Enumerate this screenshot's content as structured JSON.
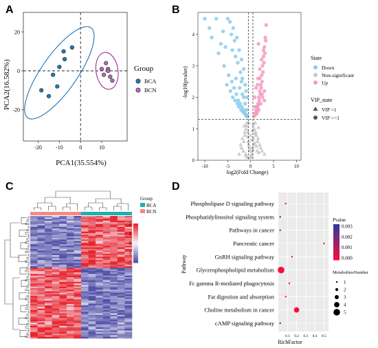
{
  "panel_labels": {
    "a": "A",
    "b": "B",
    "c": "C",
    "d": "D"
  },
  "chart_data": [
    {
      "type": "scatter",
      "panel": "A",
      "xlabel": "PCA1(35.554%)",
      "ylabel": "PCA2(16.582%)",
      "xlim": [
        -27,
        22
      ],
      "ylim": [
        -36,
        30
      ],
      "xticks": [
        -20,
        -10,
        0,
        10
      ],
      "yticks": [
        -20,
        0,
        20
      ],
      "legend_title": "Group",
      "legend_position": "right",
      "series": [
        {
          "name": "BCA",
          "color": "#1f7bb5",
          "ellipse_color": "#1f74b4",
          "x": [
            -18.5,
            -15,
            -11,
            -7.5,
            -8,
            -4,
            -13,
            -10
          ],
          "y": [
            -10,
            -13,
            -8,
            6,
            10,
            12,
            -2,
            2
          ]
        },
        {
          "name": "BCN",
          "color": "#b06cb8",
          "ellipse_color": "#9b2d9a",
          "x": [
            10,
            11,
            12,
            13,
            14,
            13,
            15
          ],
          "y": [
            1,
            -2,
            4,
            1,
            -3,
            0,
            -5
          ]
        }
      ]
    },
    {
      "type": "scatter",
      "panel": "B",
      "xlabel": "log2(Fold Change)",
      "ylabel": "-log10(pvalue)",
      "xlim": [
        -11.5,
        11
      ],
      "ylim": [
        0,
        4.7
      ],
      "xticks": [
        -10,
        -5,
        0,
        5,
        10
      ],
      "yticks": [
        0,
        1,
        2,
        3,
        4
      ],
      "threshold_lines": {
        "x": [
          -0.5,
          0.5
        ],
        "y": [
          1.3
        ]
      },
      "legend_groups": [
        {
          "title": "State",
          "entries": [
            {
              "label": "Down",
              "color": "#8ccbea"
            },
            {
              "label": "Non-significant",
              "color": "#c8c8c8"
            },
            {
              "label": "Up",
              "color": "#f49ac0"
            }
          ]
        },
        {
          "title": "VIP_state",
          "entries": [
            {
              "label": "VIP <1",
              "shape": "triangle"
            },
            {
              "label": "VIP >=1",
              "shape": "circle"
            }
          ]
        }
      ],
      "series": [
        {
          "name": "Down",
          "color": "#8ccbea",
          "x": [
            -10,
            -9,
            -8.5,
            -7.5,
            -6,
            -5.5,
            -5,
            -4.5,
            -4.2,
            -4,
            -3.8,
            -3.5,
            -3.3,
            -3,
            -2.8,
            -2.5,
            -2.2,
            -2,
            -1.8,
            -1.5,
            -1.2,
            -1,
            -0.8,
            -6.5,
            -5.8,
            -4.8,
            -4.1,
            -3.6,
            -3.1,
            -2.7,
            -2.3,
            -1.9,
            -1.6,
            -1.3,
            -1.1,
            -0.9,
            -7,
            -5.2,
            -4.4,
            -3.9,
            -3.4,
            -2.9,
            -2.6,
            -2.1,
            -1.7,
            -1.4,
            -1,
            -0.7,
            -3.2,
            -2.4,
            -1.8,
            -1.2,
            -0.9,
            -2,
            -1.5
          ],
          "y": [
            4.5,
            4.2,
            3.9,
            4.5,
            4.1,
            3.6,
            4.5,
            4.4,
            4,
            3.5,
            4.2,
            3.8,
            3.3,
            3.9,
            3.1,
            3.5,
            2.8,
            3.2,
            2.6,
            2.9,
            2.4,
            2.2,
            2,
            3.7,
            3,
            2.7,
            2.5,
            2.3,
            2.1,
            1.9,
            1.8,
            1.7,
            1.6,
            1.5,
            1.45,
            1.4,
            3.4,
            2.4,
            2.2,
            2,
            1.9,
            1.8,
            1.7,
            1.6,
            1.55,
            1.5,
            1.45,
            1.4,
            2.6,
            2.3,
            2.1,
            1.8,
            1.6,
            2.5,
            2
          ]
        },
        {
          "name": "Up",
          "color": "#f49ac0",
          "x": [
            0.8,
            1,
            1.2,
            1.4,
            1.6,
            1.8,
            2,
            2.2,
            2.4,
            2.6,
            2.8,
            3,
            3.2,
            3.4,
            1.1,
            1.3,
            1.5,
            1.7,
            1.9,
            2.1,
            2.3,
            2.5,
            2.7,
            2.9,
            3.1,
            0.9,
            1.2,
            1.6,
            2,
            2.4,
            2.8,
            3.3,
            1.4,
            1.8,
            2.2,
            2.6,
            3,
            1,
            1.5,
            2,
            2.5,
            3,
            1.7
          ],
          "y": [
            1.4,
            1.5,
            1.6,
            1.7,
            1.8,
            2,
            2.2,
            2.4,
            2.7,
            3,
            3.3,
            3.6,
            3.9,
            4.3,
            1.45,
            1.55,
            1.65,
            1.75,
            1.9,
            2.1,
            2.3,
            2.5,
            2.8,
            3.1,
            3.4,
            2,
            2.3,
            2.6,
            2.9,
            3.2,
            3.5,
            3.8,
            1.5,
            1.6,
            1.8,
            2,
            2.2,
            1.7,
            2.4,
            2.6,
            2.1,
            1.9,
            3.7
          ]
        },
        {
          "name": "Non-significant",
          "color": "#c8c8c8",
          "x": [
            -2.5,
            -2,
            -1.5,
            -1.2,
            -1,
            -0.8,
            -0.6,
            -0.4,
            -0.2,
            0,
            0.2,
            0.4,
            0.6,
            0.8,
            1,
            1.2,
            1.5,
            2,
            2.5,
            3,
            -1.8,
            -1.3,
            -0.9,
            -0.5,
            -0.1,
            0.3,
            0.7,
            1.1,
            1.6,
            2.2,
            -2.2,
            -1.6,
            -1.1,
            -0.7,
            -0.3,
            0.1,
            0.5,
            0.9,
            1.3,
            1.8,
            -1.4,
            -0.6,
            0.2,
            1,
            1.7,
            -1,
            0,
            0.6,
            1.4,
            -0.4,
            0.4
          ],
          "y": [
            0.2,
            0.4,
            0.6,
            0.8,
            1,
            1.2,
            0.9,
            0.5,
            0.3,
            0.1,
            0.2,
            0.4,
            0.7,
            1,
            1.2,
            0.8,
            0.6,
            0.5,
            0.3,
            0.2,
            0.7,
            0.9,
            1.1,
            0.6,
            0.4,
            0.3,
            0.5,
            0.9,
            0.7,
            0.4,
            0.5,
            0.3,
            0.2,
            0.1,
            0.05,
            0.15,
            0.35,
            0.55,
            0.45,
            0.25,
            1.1,
            0.75,
            0.65,
            0.85,
            1.05,
            0.15,
            0.8,
            1.15,
            0.3,
            1.2,
            0.95
          ]
        }
      ]
    },
    {
      "type": "heatmap",
      "panel": "C",
      "n_columns": 14,
      "n_rows": 78,
      "legend_title": "Group",
      "groups": [
        {
          "name": "BCA",
          "color": "#1ab0b0",
          "columns": 7
        },
        {
          "name": "BCN",
          "color": "#f58a82",
          "columns": 7
        }
      ],
      "color_scale": {
        "min": -2,
        "max": 2,
        "ticks": [
          2,
          1,
          0,
          -1,
          -2
        ],
        "low": "#5352a8",
        "mid": "#f6f5fb",
        "high": "#e7232d"
      }
    },
    {
      "type": "scatter",
      "panel": "D",
      "xlabel": "RichFactor",
      "ylabel": "Pathway",
      "xlim": [
        0,
        0.55
      ],
      "xticks": [
        0.1,
        0.2,
        0.3,
        0.4,
        0.5
      ],
      "categories": [
        "Phospholipase D signaling pathway",
        "Phosphatidylinositol signaling system",
        "Pathways in cancer",
        "Pancreatic cancer",
        "GnRH signaling pathway",
        "Glycerophospholipid metabolism",
        "Fc gamma R-mediated phagocytosis",
        "Fat digestion and absorption",
        "Choline metabolism in cancer",
        "cAMP signaling pathway"
      ],
      "richfactor": [
        0.08,
        0.02,
        0.02,
        0.5,
        0.15,
        0.03,
        0.12,
        0.08,
        0.2,
        0.02
      ],
      "pvalue": [
        0.0,
        0.003,
        0.003,
        0.0,
        0.0,
        0.0,
        0.0,
        0.0,
        0.0,
        0.003
      ],
      "number": [
        1,
        1,
        1,
        1,
        1,
        5,
        1,
        1,
        4,
        1
      ],
      "color_legend": {
        "title": "Pvalue",
        "ticks": [
          "0.003",
          "0.002",
          "0.001",
          "0.000"
        ],
        "low": "#f50f3b",
        "high": "#2f3a9a"
      },
      "size_legend": {
        "title": "MetabolitesNumber",
        "values": [
          "1",
          "2",
          "3",
          "4",
          "5"
        ]
      }
    }
  ]
}
